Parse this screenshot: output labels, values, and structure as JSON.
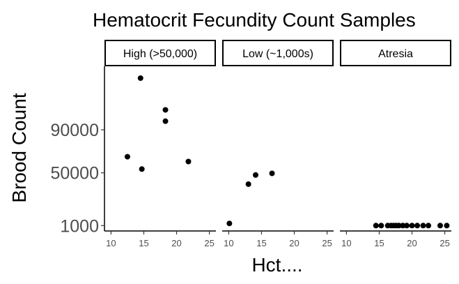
{
  "chart_data": {
    "type": "scatter",
    "title": "Hematocrit Fecundity Count Samples",
    "xlabel": "Hct....",
    "ylabel": "Brood Count",
    "xlim": [
      9,
      26
    ],
    "ylim": [
      -4000,
      149000
    ],
    "x_ticks": [
      10,
      15,
      20,
      25
    ],
    "y_ticks": [
      {
        "value": 1000,
        "label": "1000"
      },
      {
        "value": 50000,
        "label": "50000"
      },
      {
        "value": 90000,
        "label": "90000"
      }
    ],
    "grid": false,
    "point_color": "#000000",
    "panels": [
      {
        "label": "High (>50,000)",
        "points": [
          {
            "x": 12.5,
            "y": 65000
          },
          {
            "x": 14.5,
            "y": 138000
          },
          {
            "x": 14.7,
            "y": 53500
          },
          {
            "x": 18.3,
            "y": 108500
          },
          {
            "x": 18.3,
            "y": 98000
          },
          {
            "x": 21.8,
            "y": 60500
          }
        ]
      },
      {
        "label": "Low (~1,000s)",
        "points": [
          {
            "x": 10.1,
            "y": 3000
          },
          {
            "x": 13.0,
            "y": 39500
          },
          {
            "x": 14.1,
            "y": 48000
          },
          {
            "x": 16.6,
            "y": 49500
          }
        ]
      },
      {
        "label": "Atresia",
        "points": [
          {
            "x": 14.5,
            "y": 1000
          },
          {
            "x": 15.3,
            "y": 1000
          },
          {
            "x": 16.3,
            "y": 1000
          },
          {
            "x": 16.8,
            "y": 1000
          },
          {
            "x": 17.2,
            "y": 1000
          },
          {
            "x": 17.6,
            "y": 1000
          },
          {
            "x": 18.0,
            "y": 1000
          },
          {
            "x": 18.6,
            "y": 1000
          },
          {
            "x": 19.2,
            "y": 1000
          },
          {
            "x": 20.0,
            "y": 1000
          },
          {
            "x": 20.8,
            "y": 1000
          },
          {
            "x": 21.7,
            "y": 1000
          },
          {
            "x": 22.5,
            "y": 1000
          },
          {
            "x": 24.3,
            "y": 1000
          },
          {
            "x": 25.3,
            "y": 1000
          }
        ]
      }
    ]
  }
}
